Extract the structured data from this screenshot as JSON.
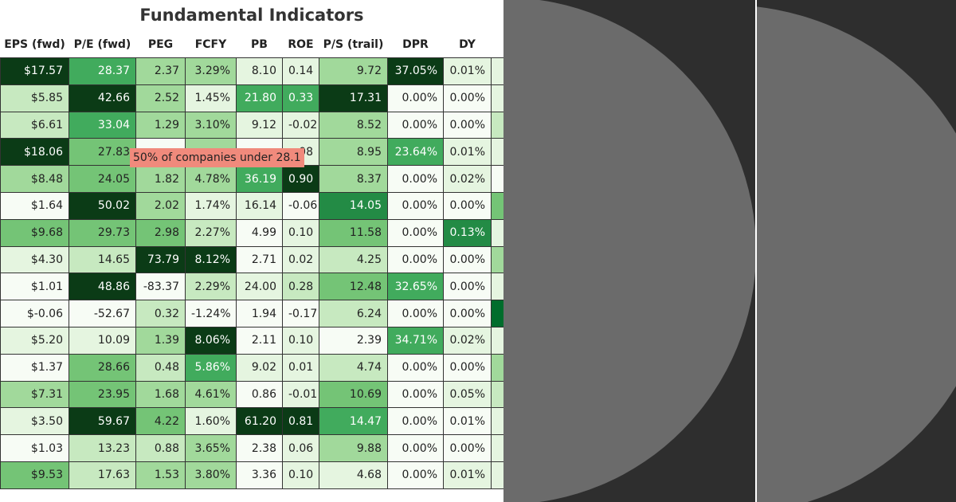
{
  "title": "Fundamental Indicators",
  "columns": [
    "EPS (fwd)",
    "P/E (fwd)",
    "PEG",
    "FCFY",
    "PB",
    "ROE",
    "P/S (trail)",
    "DPR",
    "DY",
    ""
  ],
  "rows": [
    [
      "$17.57",
      "28.37",
      "2.37",
      "3.29%",
      "8.10",
      "0.14",
      "9.72",
      "37.05%",
      "0.01%",
      ""
    ],
    [
      "$5.85",
      "42.66",
      "2.52",
      "1.45%",
      "21.80",
      "0.33",
      "17.31",
      "0.00%",
      "0.00%",
      ""
    ],
    [
      "$6.61",
      "33.04",
      "1.29",
      "3.10%",
      "9.12",
      "-0.02",
      "8.52",
      "0.00%",
      "0.00%",
      ""
    ],
    [
      "$18.06",
      "27.83",
      "",
      "",
      "",
      "08",
      "8.95",
      "23.64%",
      "0.01%",
      ""
    ],
    [
      "$8.48",
      "24.05",
      "1.82",
      "4.78%",
      "36.19",
      "0.90",
      "8.37",
      "0.00%",
      "0.02%",
      ""
    ],
    [
      "$1.64",
      "50.02",
      "2.02",
      "1.74%",
      "16.14",
      "-0.06",
      "14.05",
      "0.00%",
      "0.00%",
      ""
    ],
    [
      "$9.68",
      "29.73",
      "2.98",
      "2.27%",
      "4.99",
      "0.10",
      "11.58",
      "0.00%",
      "0.13%",
      ""
    ],
    [
      "$4.30",
      "14.65",
      "73.79",
      "8.12%",
      "2.71",
      "0.02",
      "4.25",
      "0.00%",
      "0.00%",
      ""
    ],
    [
      "$1.01",
      "48.86",
      "-83.37",
      "2.29%",
      "24.00",
      "0.28",
      "12.48",
      "32.65%",
      "0.00%",
      ""
    ],
    [
      "$-0.06",
      "-52.67",
      "0.32",
      "-1.24%",
      "1.94",
      "-0.17",
      "6.24",
      "0.00%",
      "0.00%",
      ""
    ],
    [
      "$5.20",
      "10.09",
      "1.39",
      "8.06%",
      "2.11",
      "0.10",
      "2.39",
      "34.71%",
      "0.02%",
      ""
    ],
    [
      "$1.37",
      "28.66",
      "0.48",
      "5.86%",
      "9.02",
      "0.01",
      "4.74",
      "0.00%",
      "0.00%",
      ""
    ],
    [
      "$7.31",
      "23.95",
      "1.68",
      "4.61%",
      "0.86",
      "-0.01",
      "10.69",
      "0.00%",
      "0.05%",
      ""
    ],
    [
      "$3.50",
      "59.67",
      "4.22",
      "1.60%",
      "61.20",
      "0.81",
      "14.47",
      "0.00%",
      "0.01%",
      ""
    ],
    [
      "$1.03",
      "13.23",
      "0.88",
      "3.65%",
      "2.38",
      "0.06",
      "9.88",
      "0.00%",
      "0.00%",
      ""
    ],
    [
      "$9.53",
      "17.63",
      "1.53",
      "3.80%",
      "3.36",
      "0.10",
      "4.68",
      "0.00%",
      "0.01%",
      ""
    ]
  ],
  "shades": [
    [
      9,
      5,
      3,
      3,
      1,
      1,
      3,
      9,
      1,
      1
    ],
    [
      2,
      9,
      3,
      1,
      5,
      5,
      9,
      0,
      0,
      1
    ],
    [
      2,
      5,
      3,
      3,
      1,
      1,
      3,
      0,
      0,
      2
    ],
    [
      9,
      4,
      0,
      3,
      0,
      1,
      3,
      5,
      1,
      1
    ],
    [
      3,
      4,
      3,
      3,
      5,
      9,
      3,
      0,
      1,
      0
    ],
    [
      0,
      9,
      3,
      1,
      1,
      0,
      6,
      0,
      0,
      4
    ],
    [
      4,
      4,
      4,
      2,
      0,
      1,
      4,
      0,
      6,
      1
    ],
    [
      1,
      2,
      9,
      9,
      0,
      1,
      2,
      0,
      0,
      3
    ],
    [
      0,
      9,
      0,
      2,
      1,
      2,
      4,
      5,
      0,
      1
    ],
    [
      0,
      0,
      2,
      0,
      0,
      0,
      2,
      0,
      0,
      7
    ],
    [
      1,
      1,
      3,
      9,
      0,
      1,
      0,
      5,
      1,
      1
    ],
    [
      0,
      4,
      2,
      5,
      1,
      1,
      2,
      0,
      0,
      3
    ],
    [
      3,
      4,
      3,
      3,
      0,
      1,
      4,
      0,
      1,
      2
    ],
    [
      1,
      9,
      4,
      1,
      9,
      9,
      5,
      0,
      0,
      1
    ],
    [
      0,
      2,
      2,
      3,
      0,
      1,
      3,
      0,
      0,
      1
    ],
    [
      4,
      2,
      3,
      3,
      0,
      1,
      1,
      0,
      1,
      1
    ]
  ],
  "palette": [
    "#f7fcf5",
    "#e5f5e0",
    "#c7e9c0",
    "#a1d99b",
    "#74c476",
    "#41ab5d",
    "#238b45",
    "#006d2c",
    "#00441b",
    "#0b3b16"
  ],
  "tooltip": "50% of companies under 28.1"
}
